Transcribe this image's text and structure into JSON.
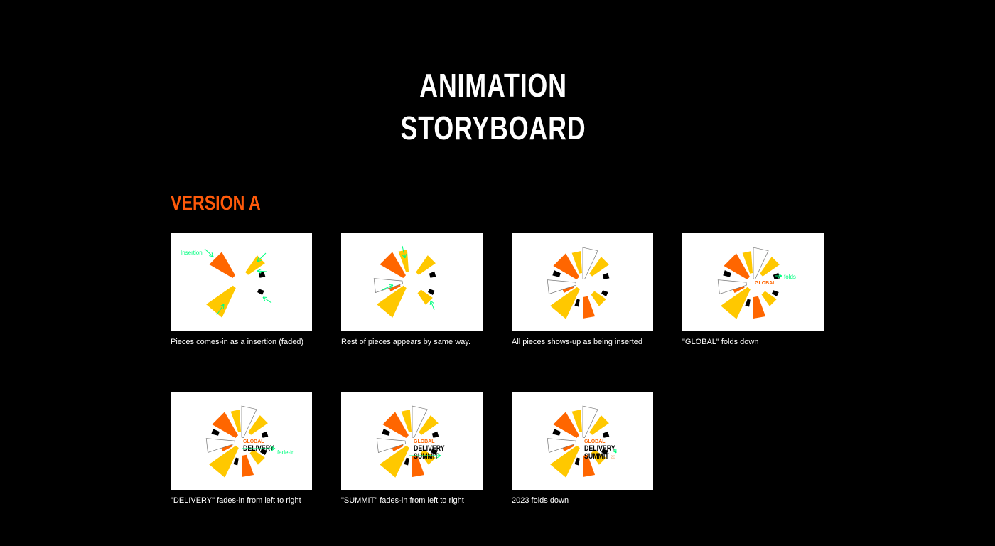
{
  "title": [
    "ANIMATION",
    "STORYBOARD"
  ],
  "section_title": "VERSION A",
  "colors": {
    "accent": "#ff5a0a",
    "orange": "#ff6600",
    "yellow": "#ffc800",
    "annotation": "#00ff80"
  },
  "logo_text": {
    "line1": "GLOBAL",
    "line2": "DELIVERY",
    "line3": "SUMMIT",
    "year": "2023"
  },
  "frames": [
    {
      "caption": "Pieces comes-in as a insertion (faded)",
      "annotation": "Insertion"
    },
    {
      "caption": "Rest of pieces appears by same way.",
      "annotation": ""
    },
    {
      "caption": "All pieces shows-up as being inserted",
      "annotation": ""
    },
    {
      "caption": "\"GLOBAL\" folds down",
      "annotation": "folds"
    },
    {
      "caption": "\"DELIVERY\" fades-in from left to right",
      "annotation": "fade-in"
    },
    {
      "caption": "\"SUMMIT\" fades-in from left to right",
      "annotation": ""
    },
    {
      "caption": "2023  folds down",
      "annotation": ""
    }
  ]
}
